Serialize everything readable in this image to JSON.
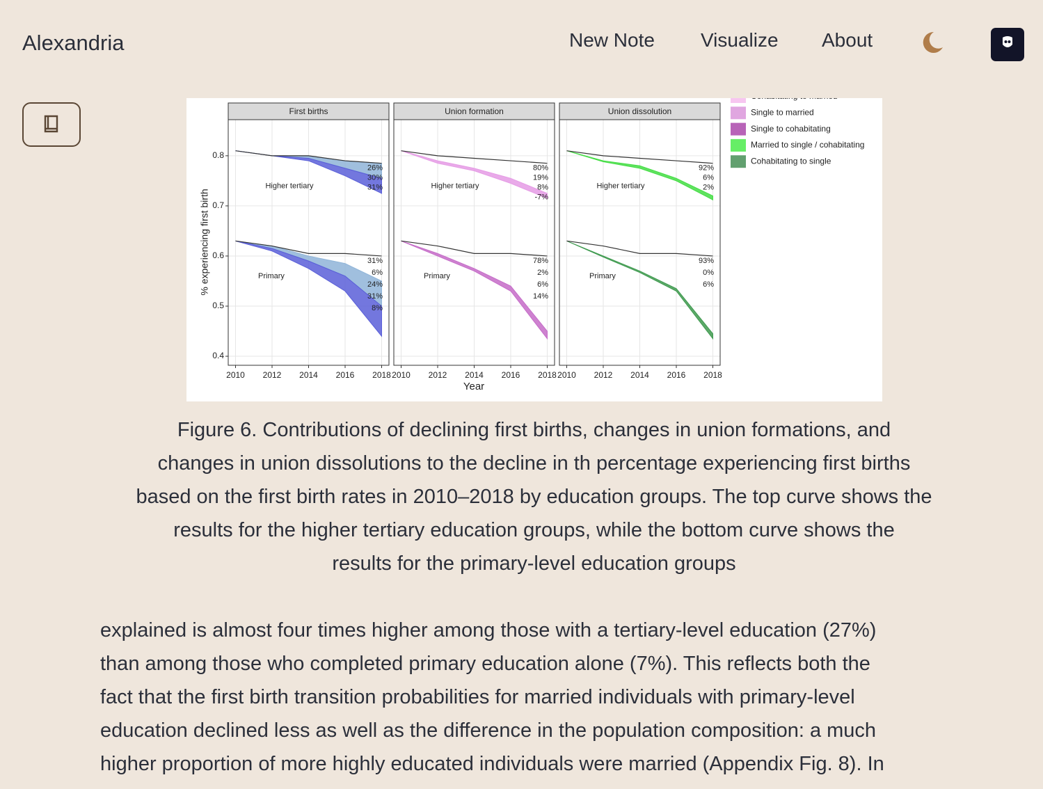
{
  "nav": {
    "brand": "Alexandria",
    "links": [
      "New Note",
      "Visualize",
      "About"
    ]
  },
  "figure": {
    "y_label": "% experiencing first birth",
    "x_label": "Year",
    "x": [
      2010,
      2012,
      2014,
      2016,
      2018
    ],
    "xlim": [
      2009.6,
      2018.4
    ],
    "xticks": [
      2010,
      2012,
      2014,
      2016,
      2018
    ],
    "ylim": [
      0.382,
      0.872
    ],
    "yticks": [
      0.4,
      0.5,
      0.6,
      0.7,
      0.8
    ],
    "grid": true,
    "line_color": "#333333",
    "panels": [
      {
        "title": "First births",
        "groups": [
          {
            "label": "Higher tertiary",
            "line": [
              0.81,
              0.8,
              0.8,
              0.79,
              0.785
            ],
            "bands": [
              {
                "color": "#8fb4d8",
                "upper": [
                  0.81,
                  0.8,
                  0.8,
                  0.79,
                  0.785
                ],
                "lower": [
                  0.81,
                  0.8,
                  0.795,
                  0.775,
                  0.755
                ]
              },
              {
                "color": "#5a5fd8",
                "upper": [
                  0.81,
                  0.8,
                  0.795,
                  0.775,
                  0.755
                ],
                "lower": [
                  0.81,
                  0.8,
                  0.79,
                  0.76,
                  0.725
                ]
              }
            ],
            "pct": [
              "26%",
              "30%",
              "31%"
            ]
          },
          {
            "label": "Primary",
            "line": [
              0.63,
              0.62,
              0.605,
              0.605,
              0.6
            ],
            "bands": [
              {
                "color": "#8fb4d8",
                "upper": [
                  0.63,
                  0.62,
                  0.6,
                  0.585,
                  0.55
                ],
                "lower": [
                  0.63,
                  0.615,
                  0.59,
                  0.56,
                  0.5
                ]
              },
              {
                "color": "#5a5fd8",
                "upper": [
                  0.63,
                  0.615,
                  0.59,
                  0.56,
                  0.5
                ],
                "lower": [
                  0.63,
                  0.61,
                  0.575,
                  0.53,
                  0.44
                ]
              }
            ],
            "pct": [
              "31%",
              "6%",
              "24%",
              "31%",
              "8%"
            ]
          }
        ]
      },
      {
        "title": "Union formation",
        "groups": [
          {
            "label": "Higher tertiary",
            "line": [
              0.81,
              0.8,
              0.795,
              0.79,
              0.785
            ],
            "bands": [
              {
                "color": "#e59be5",
                "upper": [
                  0.81,
                  0.79,
                  0.775,
                  0.755,
                  0.725
                ],
                "lower": [
                  0.81,
                  0.785,
                  0.77,
                  0.745,
                  0.715
                ]
              }
            ],
            "pct": [
              "80%",
              "19%",
              "8%",
              "-7%"
            ]
          },
          {
            "label": "Primary",
            "line": [
              0.63,
              0.62,
              0.605,
              0.605,
              0.6
            ],
            "bands": [
              {
                "color": "#c56cc8",
                "upper": [
                  0.63,
                  0.605,
                  0.575,
                  0.54,
                  0.45
                ],
                "lower": [
                  0.63,
                  0.6,
                  0.57,
                  0.53,
                  0.435
                ]
              }
            ],
            "pct": [
              "78%",
              "2%",
              "6%",
              "14%"
            ]
          }
        ]
      },
      {
        "title": "Union dissolution",
        "groups": [
          {
            "label": "Higher tertiary",
            "line": [
              0.81,
              0.8,
              0.795,
              0.79,
              0.785
            ],
            "bands": [
              {
                "color": "#44dd44",
                "upper": [
                  0.81,
                  0.79,
                  0.78,
                  0.755,
                  0.72
                ],
                "lower": [
                  0.81,
                  0.788,
                  0.775,
                  0.75,
                  0.712
                ]
              }
            ],
            "pct": [
              "92%",
              "6%",
              "2%"
            ]
          },
          {
            "label": "Primary",
            "line": [
              0.63,
              0.62,
              0.605,
              0.605,
              0.6
            ],
            "bands": [
              {
                "color": "#3f9a4f",
                "upper": [
                  0.63,
                  0.6,
                  0.57,
                  0.535,
                  0.445
                ],
                "lower": [
                  0.63,
                  0.598,
                  0.567,
                  0.53,
                  0.435
                ]
              }
            ],
            "pct": [
              "93%",
              "0%",
              "6%"
            ]
          }
        ]
      }
    ],
    "legend": [
      {
        "label": "Cohabitating to married",
        "color": "#f7c6f0"
      },
      {
        "label": "Single to married",
        "color": "#e0a6e0"
      },
      {
        "label": "Single to cohabitating",
        "color": "#b864b8"
      },
      {
        "label": "Married to single / cohabitating",
        "color": "#66ee66"
      },
      {
        "label": "Cohabitating to single",
        "color": "#62a06f"
      }
    ]
  },
  "caption_lines": [
    "Figure 6. Contributions of declining first births, changes in union formations, and",
    "changes in union dissolutions to the decline in th percentage experiencing first births",
    "based on the first birth rates in 2010–2018 by education groups. The top curve shows the",
    "results for the higher tertiary education groups, while the bottom curve shows the",
    "results for the primary-level education groups"
  ],
  "body_lines": [
    "explained is almost four times higher among those with a tertiary-level education (27%)",
    "than among those who completed primary education alone (7%). This reflects both the",
    "fact that the first birth transition probabilities for married individuals with primary-level",
    "education declined less as well as the difference in the population composition: a much",
    "higher proportion of more highly educated individuals were married (Appendix Fig. 8). In"
  ]
}
